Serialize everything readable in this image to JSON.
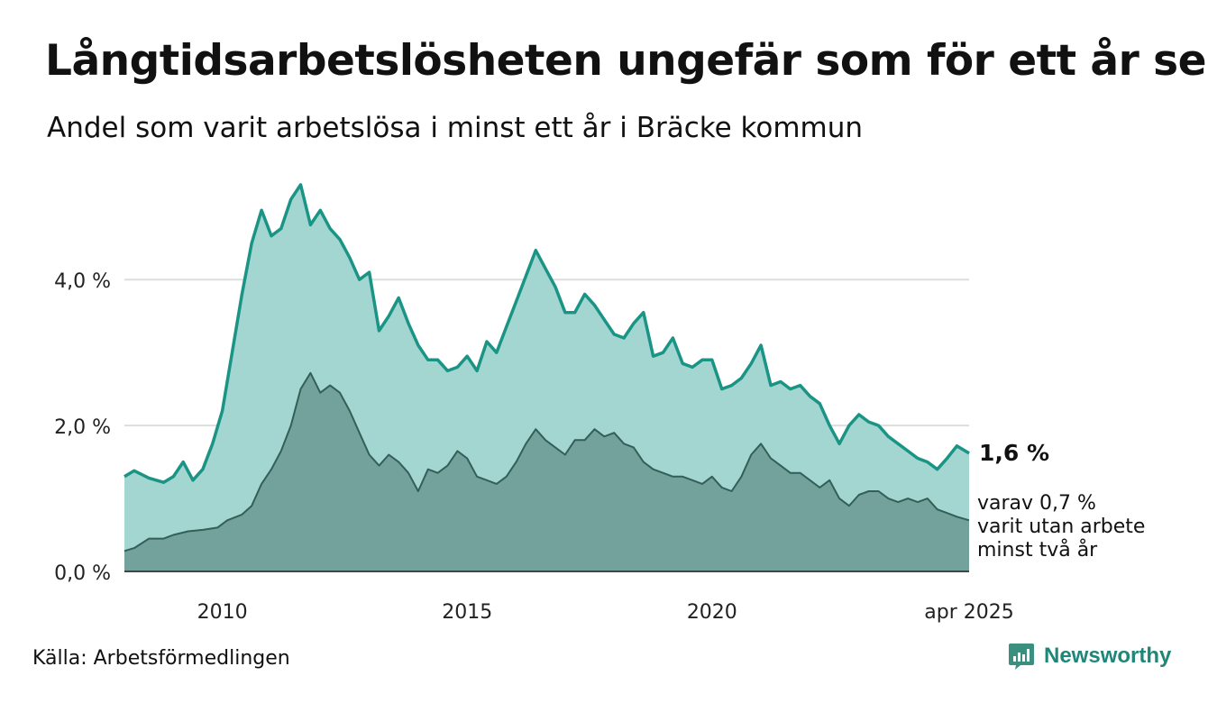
{
  "title": "Långtidsarbetslösheten ungefär som för ett år sen",
  "subtitle": "Andel som varit arbetslösa i minst ett år i Bräcke kommun",
  "source": "Källa: Arbetsförmedlingen",
  "brand": {
    "name": "Newsworthy",
    "icon": "newsworthy-chart-icon"
  },
  "annotations": {
    "main_value": "1,6 %",
    "sub_line1": "varav 0,7 %",
    "sub_line2": "varit utan arbete",
    "sub_line3": "minst två år"
  },
  "colors": {
    "main_line": "#1a9485",
    "main_fill": "#a4d6d1",
    "sub_fill": "#72a29b",
    "sub_line": "#335f58",
    "grid": "#dddddd",
    "baseline": "#444444"
  },
  "chart_data": {
    "type": "area",
    "title": "Långtidsarbetslösheten ungefär som för ett år sen",
    "subtitle": "Andel som varit arbetslösa i minst ett år i Bräcke kommun",
    "xlabel": "",
    "ylabel": "",
    "ylim": [
      0,
      5.3
    ],
    "y_ticks": [
      {
        "value": 0,
        "label": "0,0 %"
      },
      {
        "value": 2,
        "label": "2,0 %"
      },
      {
        "value": 4,
        "label": "4,0 %"
      }
    ],
    "x_ticks": [
      {
        "value": 2010,
        "label": "2010"
      },
      {
        "value": 2015,
        "label": "2015"
      },
      {
        "value": 2020,
        "label": "2020"
      },
      {
        "value": 2025.25,
        "label": "apr 2025"
      }
    ],
    "grid": true,
    "legend": "none",
    "series": [
      {
        "name": "",
        "values": [
          [
            2008.0,
            1.3
          ],
          [
            2008.2,
            1.38
          ],
          [
            2008.5,
            1.28
          ],
          [
            2008.8,
            1.22
          ],
          [
            2009.0,
            1.3
          ],
          [
            2009.2,
            1.5
          ],
          [
            2009.4,
            1.25
          ],
          [
            2009.6,
            1.4
          ],
          [
            2009.8,
            1.75
          ],
          [
            2010.0,
            2.2
          ],
          [
            2010.2,
            3.0
          ],
          [
            2010.4,
            3.8
          ],
          [
            2010.6,
            4.5
          ],
          [
            2010.8,
            4.95
          ],
          [
            2011.0,
            4.6
          ],
          [
            2011.2,
            4.7
          ],
          [
            2011.4,
            5.1
          ],
          [
            2011.6,
            5.3
          ],
          [
            2011.8,
            4.75
          ],
          [
            2012.0,
            4.95
          ],
          [
            2012.2,
            4.7
          ],
          [
            2012.4,
            4.55
          ],
          [
            2012.6,
            4.3
          ],
          [
            2012.8,
            4.0
          ],
          [
            2013.0,
            4.1
          ],
          [
            2013.2,
            3.3
          ],
          [
            2013.4,
            3.5
          ],
          [
            2013.6,
            3.75
          ],
          [
            2013.8,
            3.4
          ],
          [
            2014.0,
            3.1
          ],
          [
            2014.2,
            2.9
          ],
          [
            2014.4,
            2.9
          ],
          [
            2014.6,
            2.75
          ],
          [
            2014.8,
            2.8
          ],
          [
            2015.0,
            2.95
          ],
          [
            2015.2,
            2.75
          ],
          [
            2015.4,
            3.15
          ],
          [
            2015.6,
            3.0
          ],
          [
            2015.8,
            3.35
          ],
          [
            2016.0,
            3.7
          ],
          [
            2016.2,
            4.05
          ],
          [
            2016.4,
            4.4
          ],
          [
            2016.6,
            4.15
          ],
          [
            2016.8,
            3.9
          ],
          [
            2017.0,
            3.55
          ],
          [
            2017.2,
            3.55
          ],
          [
            2017.4,
            3.8
          ],
          [
            2017.6,
            3.65
          ],
          [
            2017.8,
            3.45
          ],
          [
            2018.0,
            3.25
          ],
          [
            2018.2,
            3.2
          ],
          [
            2018.4,
            3.4
          ],
          [
            2018.6,
            3.55
          ],
          [
            2018.8,
            2.95
          ],
          [
            2019.0,
            3.0
          ],
          [
            2019.2,
            3.2
          ],
          [
            2019.4,
            2.85
          ],
          [
            2019.6,
            2.8
          ],
          [
            2019.8,
            2.9
          ],
          [
            2020.0,
            2.9
          ],
          [
            2020.2,
            2.5
          ],
          [
            2020.4,
            2.55
          ],
          [
            2020.6,
            2.65
          ],
          [
            2020.8,
            2.85
          ],
          [
            2021.0,
            3.1
          ],
          [
            2021.2,
            2.55
          ],
          [
            2021.4,
            2.6
          ],
          [
            2021.6,
            2.5
          ],
          [
            2021.8,
            2.55
          ],
          [
            2022.0,
            2.4
          ],
          [
            2022.2,
            2.3
          ],
          [
            2022.4,
            2.0
          ],
          [
            2022.6,
            1.75
          ],
          [
            2022.8,
            2.0
          ],
          [
            2023.0,
            2.15
          ],
          [
            2023.2,
            2.05
          ],
          [
            2023.4,
            2.0
          ],
          [
            2023.6,
            1.85
          ],
          [
            2023.8,
            1.75
          ],
          [
            2024.0,
            1.65
          ],
          [
            2024.2,
            1.55
          ],
          [
            2024.4,
            1.5
          ],
          [
            2024.6,
            1.4
          ],
          [
            2024.8,
            1.55
          ],
          [
            2025.0,
            1.72
          ],
          [
            2025.25,
            1.62
          ]
        ]
      },
      {
        "name": "",
        "values": [
          [
            2008.0,
            0.28
          ],
          [
            2008.2,
            0.32
          ],
          [
            2008.5,
            0.45
          ],
          [
            2008.8,
            0.45
          ],
          [
            2009.0,
            0.5
          ],
          [
            2009.3,
            0.55
          ],
          [
            2009.6,
            0.57
          ],
          [
            2009.9,
            0.6
          ],
          [
            2010.1,
            0.7
          ],
          [
            2010.4,
            0.78
          ],
          [
            2010.6,
            0.9
          ],
          [
            2010.8,
            1.2
          ],
          [
            2011.0,
            1.4
          ],
          [
            2011.2,
            1.65
          ],
          [
            2011.4,
            2.0
          ],
          [
            2011.6,
            2.5
          ],
          [
            2011.8,
            2.72
          ],
          [
            2012.0,
            2.45
          ],
          [
            2012.2,
            2.55
          ],
          [
            2012.4,
            2.45
          ],
          [
            2012.6,
            2.2
          ],
          [
            2012.8,
            1.9
          ],
          [
            2013.0,
            1.6
          ],
          [
            2013.2,
            1.45
          ],
          [
            2013.4,
            1.6
          ],
          [
            2013.6,
            1.5
          ],
          [
            2013.8,
            1.35
          ],
          [
            2014.0,
            1.1
          ],
          [
            2014.2,
            1.4
          ],
          [
            2014.4,
            1.35
          ],
          [
            2014.6,
            1.45
          ],
          [
            2014.8,
            1.65
          ],
          [
            2015.0,
            1.55
          ],
          [
            2015.2,
            1.3
          ],
          [
            2015.4,
            1.25
          ],
          [
            2015.6,
            1.2
          ],
          [
            2015.8,
            1.3
          ],
          [
            2016.0,
            1.5
          ],
          [
            2016.2,
            1.75
          ],
          [
            2016.4,
            1.95
          ],
          [
            2016.6,
            1.8
          ],
          [
            2016.8,
            1.7
          ],
          [
            2017.0,
            1.6
          ],
          [
            2017.2,
            1.8
          ],
          [
            2017.4,
            1.8
          ],
          [
            2017.6,
            1.95
          ],
          [
            2017.8,
            1.85
          ],
          [
            2018.0,
            1.9
          ],
          [
            2018.2,
            1.75
          ],
          [
            2018.4,
            1.7
          ],
          [
            2018.6,
            1.5
          ],
          [
            2018.8,
            1.4
          ],
          [
            2019.0,
            1.35
          ],
          [
            2019.2,
            1.3
          ],
          [
            2019.4,
            1.3
          ],
          [
            2019.6,
            1.25
          ],
          [
            2019.8,
            1.2
          ],
          [
            2020.0,
            1.3
          ],
          [
            2020.2,
            1.15
          ],
          [
            2020.4,
            1.1
          ],
          [
            2020.6,
            1.3
          ],
          [
            2020.8,
            1.6
          ],
          [
            2021.0,
            1.75
          ],
          [
            2021.2,
            1.55
          ],
          [
            2021.4,
            1.45
          ],
          [
            2021.6,
            1.35
          ],
          [
            2021.8,
            1.35
          ],
          [
            2022.0,
            1.25
          ],
          [
            2022.2,
            1.15
          ],
          [
            2022.4,
            1.25
          ],
          [
            2022.6,
            1.0
          ],
          [
            2022.8,
            0.9
          ],
          [
            2023.0,
            1.05
          ],
          [
            2023.2,
            1.1
          ],
          [
            2023.4,
            1.1
          ],
          [
            2023.6,
            1.0
          ],
          [
            2023.8,
            0.95
          ],
          [
            2024.0,
            1.0
          ],
          [
            2024.2,
            0.95
          ],
          [
            2024.4,
            1.0
          ],
          [
            2024.6,
            0.85
          ],
          [
            2024.8,
            0.8
          ],
          [
            2025.0,
            0.75
          ],
          [
            2025.25,
            0.7
          ]
        ]
      }
    ]
  }
}
